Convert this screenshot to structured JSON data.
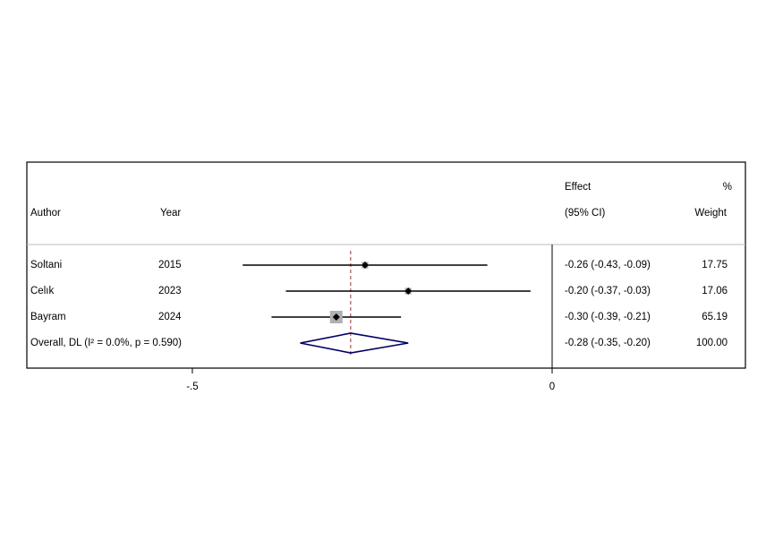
{
  "chart_data": {
    "type": "forest",
    "headers": {
      "author": "Author",
      "year": "Year",
      "effect_top": "Effect",
      "effect_bottom": "(95% CI)",
      "weight_top": "%",
      "weight_bottom": "Weight"
    },
    "studies": [
      {
        "author": "Soltani",
        "year": "2015",
        "effect": -0.26,
        "lo": -0.43,
        "hi": -0.09,
        "weight": 17.75,
        "effect_label": "-0.26 (-0.43, -0.09)",
        "weight_label": "17.75"
      },
      {
        "author": "Celık",
        "year": "2023",
        "effect": -0.2,
        "lo": -0.37,
        "hi": -0.03,
        "weight": 17.06,
        "effect_label": "-0.20 (-0.37, -0.03)",
        "weight_label": "17.06"
      },
      {
        "author": "Bayram",
        "year": "2024",
        "effect": -0.3,
        "lo": -0.39,
        "hi": -0.21,
        "weight": 65.19,
        "effect_label": "-0.30 (-0.39, -0.21)",
        "weight_label": "65.19"
      }
    ],
    "overall": {
      "label": "Overall, DL (I² = 0.0%, p = 0.590)",
      "effect": -0.28,
      "lo": -0.35,
      "hi": -0.2,
      "weight": 100,
      "effect_label": "-0.28 (-0.35, -0.20)",
      "weight_label": "100.00"
    },
    "xlim": [
      -0.73,
      0
    ],
    "xticks": [
      {
        "value": -0.5,
        "label": "-.5"
      },
      0
    ],
    "colors": {
      "ci": "#000000",
      "box": "#b0b0b0",
      "overall": "#000066",
      "reference": "#a0303a"
    }
  }
}
